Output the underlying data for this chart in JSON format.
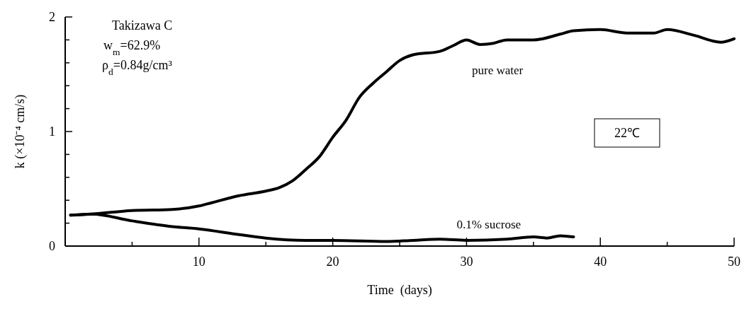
{
  "chart_data": {
    "type": "line",
    "xlabel": "Time  (days)",
    "ylabel": "k (×10⁻⁴ cm/s)",
    "xlim": [
      0,
      50
    ],
    "ylim": [
      0,
      2
    ],
    "xticks": [
      {
        "value": 5,
        "label": null
      },
      10,
      {
        "value": 15,
        "label": null
      },
      20,
      {
        "value": 25,
        "label": null
      },
      30,
      {
        "value": 35,
        "label": null
      },
      40,
      {
        "value": 45,
        "label": null
      },
      50
    ],
    "yticks": [
      0,
      {
        "value": 0.2,
        "label": null
      },
      {
        "value": 0.4,
        "label": null
      },
      {
        "value": 0.6,
        "label": null
      },
      {
        "value": 0.8,
        "label": null
      },
      1,
      {
        "value": 1.2,
        "label": null
      },
      {
        "value": 1.4,
        "label": null
      },
      {
        "value": 1.6,
        "label": null
      },
      {
        "value": 1.8,
        "label": null
      },
      2
    ],
    "grid": false,
    "marker": "none",
    "line_style": "solid",
    "annotations": [
      "Takizawa C",
      "w$_{m}$=62.9%",
      "ρ$_{d}$=0.84g/cm³",
      "22℃"
    ],
    "series": [
      {
        "name": "pure water",
        "color": "#000000",
        "x": [
          0.4,
          2,
          5,
          8,
          10,
          11,
          13,
          15,
          16,
          17,
          18,
          19,
          20,
          21,
          22,
          23,
          24,
          25,
          26,
          28,
          29,
          30,
          31,
          32,
          33,
          35,
          37,
          38,
          40,
          42,
          44,
          45,
          47,
          49,
          50
        ],
        "values": [
          0.27,
          0.28,
          0.31,
          0.32,
          0.35,
          0.38,
          0.44,
          0.48,
          0.51,
          0.57,
          0.67,
          0.78,
          0.95,
          1.1,
          1.3,
          1.42,
          1.52,
          1.62,
          1.67,
          1.7,
          1.75,
          1.8,
          1.76,
          1.77,
          1.8,
          1.8,
          1.85,
          1.88,
          1.89,
          1.86,
          1.86,
          1.89,
          1.84,
          1.78,
          1.81
        ]
      },
      {
        "name": "0.1% sucrose",
        "color": "#000000",
        "x": [
          0.4,
          2,
          5,
          8,
          10,
          13,
          15,
          18,
          20,
          24,
          26,
          28,
          30,
          33,
          35,
          36,
          37,
          38
        ],
        "values": [
          0.27,
          0.28,
          0.22,
          0.17,
          0.15,
          0.1,
          0.07,
          0.05,
          0.05,
          0.04,
          0.05,
          0.06,
          0.05,
          0.06,
          0.08,
          0.07,
          0.09,
          0.08
        ]
      }
    ]
  }
}
